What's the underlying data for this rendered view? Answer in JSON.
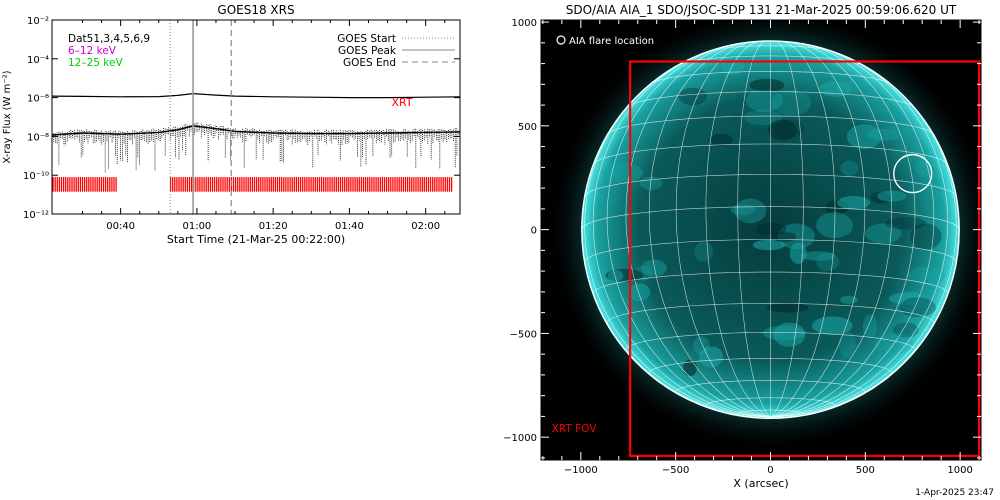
{
  "footer_timestamp": "1-Apr-2025 23:47",
  "chart_data": [
    {
      "type": "line",
      "title": "GOES18 XRS",
      "xlabel": "Start Time (21-Mar-25 00:22:00)",
      "ylabel": "X-ray Flux (W m⁻²)",
      "yscale": "log",
      "ylim": [
        1e-12,
        0.01
      ],
      "xlim": [
        "00:22",
        "02:09"
      ],
      "xticks": [
        "00:40",
        "01:00",
        "01:20",
        "01:40",
        "02:00"
      ],
      "yticks": [
        "10⁻¹²",
        "10⁻¹⁰",
        "10⁻⁸",
        "10⁻⁶",
        "10⁻⁴",
        "10⁻²"
      ],
      "legend_left": [
        {
          "label": "Dat51,3,4,5,6,9",
          "color": "#000000"
        },
        {
          "label": "6–12 keV",
          "color": "#cc00cc"
        },
        {
          "label": "12–25 keV",
          "color": "#00cc00"
        }
      ],
      "legend_right": [
        {
          "label": "GOES Start",
          "style": "dotted"
        },
        {
          "label": "GOES Peak",
          "style": "solid"
        },
        {
          "label": "GOES End",
          "style": "dashed"
        }
      ],
      "markers": {
        "start": "00:53",
        "peak": "00:59",
        "end": "01:09"
      },
      "xrt_label": "XRT",
      "xrt_gap": [
        "00:39",
        "00:53"
      ],
      "series": [
        {
          "band": "long",
          "values": [
            [
              "00:22",
              1.2e-06
            ],
            [
              "00:30",
              1.15e-06
            ],
            [
              "00:40",
              1.1e-06
            ],
            [
              "00:50",
              1.12e-06
            ],
            [
              "00:55",
              1.3e-06
            ],
            [
              "00:59",
              1.6e-06
            ],
            [
              "01:05",
              1.35e-06
            ],
            [
              "01:10",
              1.2e-06
            ],
            [
              "01:20",
              1.1e-06
            ],
            [
              "01:30",
              1.05e-06
            ],
            [
              "01:40",
              1e-06
            ],
            [
              "01:50",
              1e-06
            ],
            [
              "02:00",
              1.05e-06
            ],
            [
              "02:09",
              1.1e-06
            ]
          ]
        },
        {
          "band": "short",
          "values": [
            [
              "00:22",
              1.2e-08
            ],
            [
              "00:30",
              1.5e-08
            ],
            [
              "00:40",
              1.3e-08
            ],
            [
              "00:50",
              1.6e-08
            ],
            [
              "00:55",
              2.2e-08
            ],
            [
              "00:59",
              3.5e-08
            ],
            [
              "01:05",
              2.5e-08
            ],
            [
              "01:10",
              1.8e-08
            ],
            [
              "01:20",
              1.5e-08
            ],
            [
              "01:30",
              1.4e-08
            ],
            [
              "01:40",
              1.4e-08
            ],
            [
              "01:50",
              1.5e-08
            ],
            [
              "02:00",
              1.6e-08
            ],
            [
              "02:09",
              1.7e-08
            ]
          ]
        }
      ]
    },
    {
      "type": "image",
      "title": "SDO/AIA AIA_1 SDO/JSOC-SDP 131 21-Mar-2025 00:59:06.620 UT",
      "xlabel": "X (arcsec)",
      "ylabel": "",
      "xlim": [
        -1210,
        1110
      ],
      "ylim": [
        -1110,
        1010
      ],
      "xticks": [
        -1000,
        -500,
        0,
        500,
        1000
      ],
      "yticks": [
        -1000,
        -500,
        0,
        500,
        1000
      ],
      "legend": "AIA flare location",
      "flare_location": [
        750,
        270
      ],
      "xrt_fov": {
        "label": "XRT FOV",
        "x": [
          -740,
          1100
        ],
        "y": [
          -1090,
          810
        ]
      },
      "colors": {
        "disk": "#0b6a6a",
        "limb": "#4ee8e8",
        "fov": "#ff0000",
        "background": "#000000"
      }
    }
  ]
}
